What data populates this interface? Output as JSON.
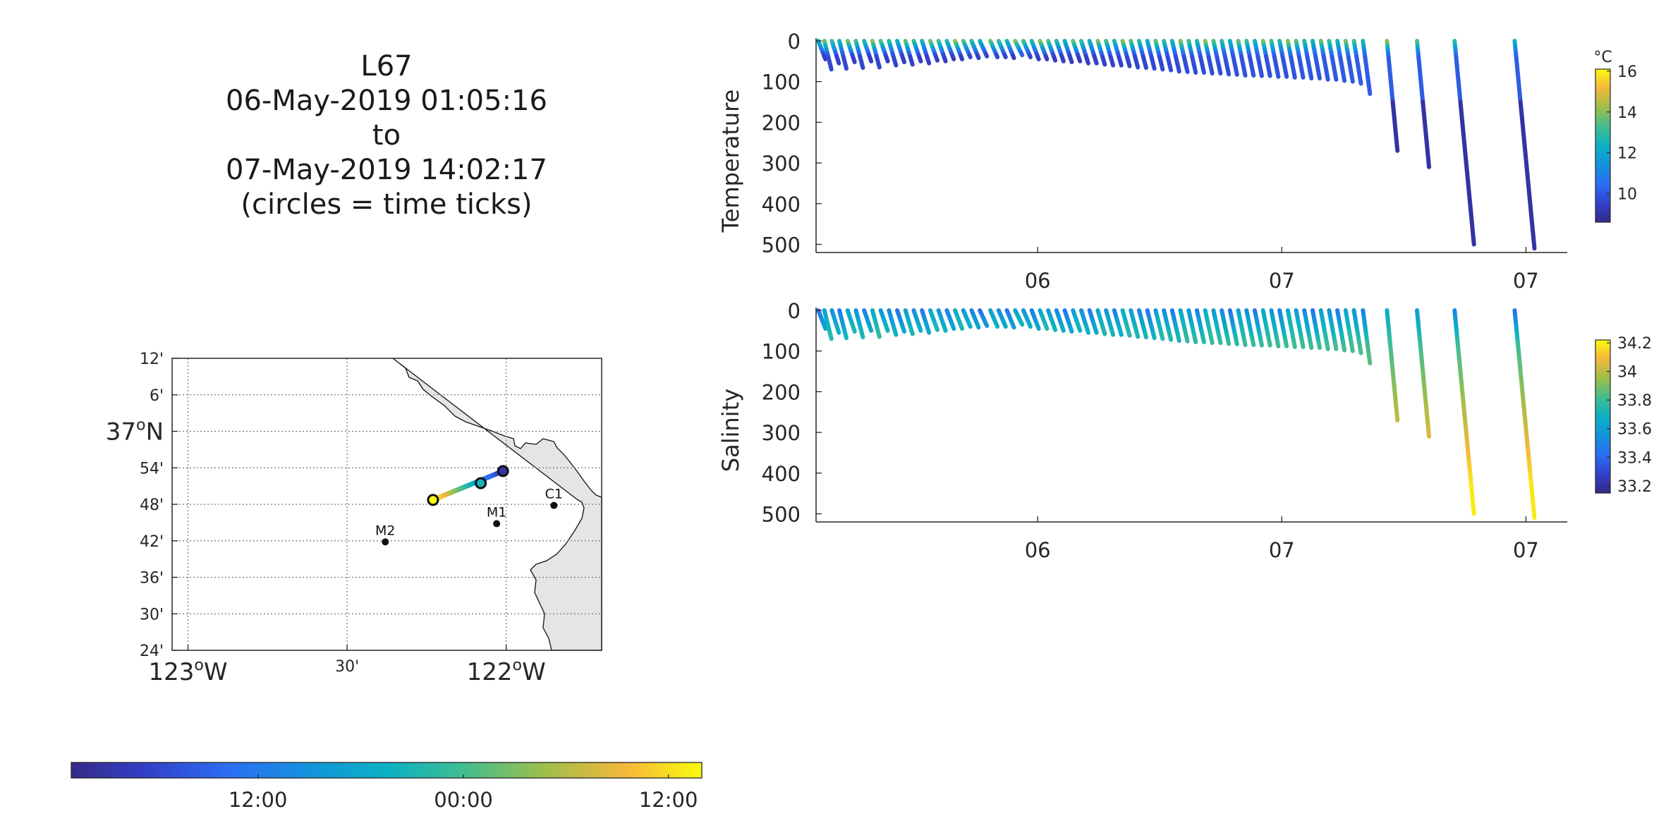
{
  "title": {
    "lines": [
      "L67",
      "06-May-2019 01:05:16",
      "to",
      "07-May-2019 14:02:17",
      "(circles = time ticks)"
    ]
  },
  "map": {
    "lat_range": [
      36.4,
      37.2
    ],
    "lon_range": [
      -123.05,
      -121.7
    ],
    "lat_ticks": [
      {
        "value": 37.2,
        "label": "12'"
      },
      {
        "value": 37.1,
        "label": "6'"
      },
      {
        "value": 37.0,
        "label": "37ºN"
      },
      {
        "value": 36.9,
        "label": "54'"
      },
      {
        "value": 36.8,
        "label": "48'"
      },
      {
        "value": 36.7,
        "label": "42'"
      },
      {
        "value": 36.6,
        "label": "36'"
      },
      {
        "value": 36.5,
        "label": "30'"
      },
      {
        "value": 36.4,
        "label": "24'"
      }
    ],
    "lon_ticks": [
      {
        "value": -123.0,
        "label": "123ºW",
        "big": true
      },
      {
        "value": -122.5,
        "label": "30'",
        "big": false
      },
      {
        "value": -122.0,
        "label": "122ºW",
        "big": true
      }
    ],
    "stations": [
      {
        "name": "M2",
        "lon": -122.38,
        "lat": 36.697
      },
      {
        "name": "M1",
        "lon": -122.03,
        "lat": 36.747
      },
      {
        "name": "C1",
        "lon": -121.85,
        "lat": 36.797
      }
    ],
    "track": {
      "start": {
        "lon": -122.01,
        "lat": 36.891
      },
      "end": {
        "lon": -122.23,
        "lat": 36.812
      },
      "time_circles": [
        {
          "lon": -122.01,
          "lat": 36.891
        },
        {
          "lon": -122.08,
          "lat": 36.858
        },
        {
          "lon": -122.23,
          "lat": 36.812
        }
      ]
    },
    "land_color": "#e5e5e5"
  },
  "time_colorbar": {
    "tick_labels": [
      "12:00",
      "00:00",
      "12:00"
    ],
    "tick_fractions": [
      0.296,
      0.622,
      0.947
    ]
  },
  "chart_data": [
    {
      "type": "scatter",
      "ylabel": "Temperature",
      "x_ticks": [
        "06",
        "07",
        "07"
      ],
      "x_tick_fractions": [
        0.295,
        0.62,
        0.945
      ],
      "y_ticks": [
        0,
        100,
        200,
        300,
        400,
        500
      ],
      "ylim": [
        0,
        520
      ],
      "colorbar": {
        "unit": "°C",
        "ticks": [
          10,
          12,
          14,
          16
        ],
        "range": [
          8.6,
          16.1
        ]
      },
      "profiles_note_values": "depth range per profile (m), surface value top, deep value bottom",
      "value_range_surface": [
        13.5,
        15.5
      ],
      "value_range_deep": [
        8.7,
        10.2
      ]
    },
    {
      "type": "scatter",
      "ylabel": "Salinity",
      "x_ticks": [
        "06",
        "07",
        "07"
      ],
      "x_tick_fractions": [
        0.295,
        0.62,
        0.945
      ],
      "y_ticks": [
        0,
        100,
        200,
        300,
        400,
        500
      ],
      "ylim": [
        0,
        520
      ],
      "colorbar": {
        "unit": "",
        "ticks": [
          33.2,
          33.4,
          33.6,
          33.8,
          34,
          34.2
        ],
        "range": [
          33.15,
          34.22
        ]
      },
      "value_range_surface": [
        33.3,
        33.6
      ],
      "value_range_deep": [
        34.1,
        34.2
      ]
    }
  ],
  "profiles": [
    {
      "f": 0.003,
      "d": 45
    },
    {
      "f": 0.011,
      "d": 70
    },
    {
      "f": 0.021,
      "d": 55
    },
    {
      "f": 0.031,
      "d": 68
    },
    {
      "f": 0.042,
      "d": 52
    },
    {
      "f": 0.053,
      "d": 66
    },
    {
      "f": 0.064,
      "d": 50
    },
    {
      "f": 0.075,
      "d": 65
    },
    {
      "f": 0.086,
      "d": 50
    },
    {
      "f": 0.097,
      "d": 60
    },
    {
      "f": 0.108,
      "d": 52
    },
    {
      "f": 0.119,
      "d": 58
    },
    {
      "f": 0.13,
      "d": 50
    },
    {
      "f": 0.141,
      "d": 55
    },
    {
      "f": 0.152,
      "d": 48
    },
    {
      "f": 0.163,
      "d": 50
    },
    {
      "f": 0.174,
      "d": 45
    },
    {
      "f": 0.185,
      "d": 45
    },
    {
      "f": 0.196,
      "d": 40
    },
    {
      "f": 0.207,
      "d": 42
    },
    {
      "f": 0.218,
      "d": 38
    },
    {
      "f": 0.232,
      "d": 40
    },
    {
      "f": 0.243,
      "d": 40
    },
    {
      "f": 0.254,
      "d": 42
    },
    {
      "f": 0.265,
      "d": 35
    },
    {
      "f": 0.276,
      "d": 40
    },
    {
      "f": 0.287,
      "d": 45
    },
    {
      "f": 0.298,
      "d": 45
    },
    {
      "f": 0.309,
      "d": 48
    },
    {
      "f": 0.32,
      "d": 50
    },
    {
      "f": 0.331,
      "d": 52
    },
    {
      "f": 0.342,
      "d": 50
    },
    {
      "f": 0.353,
      "d": 55
    },
    {
      "f": 0.364,
      "d": 55
    },
    {
      "f": 0.375,
      "d": 58
    },
    {
      "f": 0.386,
      "d": 60
    },
    {
      "f": 0.397,
      "d": 60
    },
    {
      "f": 0.408,
      "d": 62
    },
    {
      "f": 0.419,
      "d": 65
    },
    {
      "f": 0.43,
      "d": 66
    },
    {
      "f": 0.441,
      "d": 68
    },
    {
      "f": 0.452,
      "d": 70
    },
    {
      "f": 0.463,
      "d": 72
    },
    {
      "f": 0.474,
      "d": 75
    },
    {
      "f": 0.485,
      "d": 76
    },
    {
      "f": 0.496,
      "d": 78
    },
    {
      "f": 0.507,
      "d": 78
    },
    {
      "f": 0.518,
      "d": 80
    },
    {
      "f": 0.529,
      "d": 80
    },
    {
      "f": 0.54,
      "d": 82
    },
    {
      "f": 0.551,
      "d": 83
    },
    {
      "f": 0.562,
      "d": 85
    },
    {
      "f": 0.573,
      "d": 85
    },
    {
      "f": 0.584,
      "d": 86
    },
    {
      "f": 0.595,
      "d": 86
    },
    {
      "f": 0.606,
      "d": 88
    },
    {
      "f": 0.617,
      "d": 88
    },
    {
      "f": 0.628,
      "d": 90
    },
    {
      "f": 0.639,
      "d": 90
    },
    {
      "f": 0.65,
      "d": 92
    },
    {
      "f": 0.661,
      "d": 92
    },
    {
      "f": 0.672,
      "d": 95
    },
    {
      "f": 0.683,
      "d": 95
    },
    {
      "f": 0.694,
      "d": 98
    },
    {
      "f": 0.705,
      "d": 100
    },
    {
      "f": 0.716,
      "d": 105
    },
    {
      "f": 0.728,
      "d": 130
    },
    {
      "f": 0.76,
      "d": 270
    },
    {
      "f": 0.8,
      "d": 310
    },
    {
      "f": 0.85,
      "d": 500
    },
    {
      "f": 0.93,
      "d": 510
    }
  ]
}
